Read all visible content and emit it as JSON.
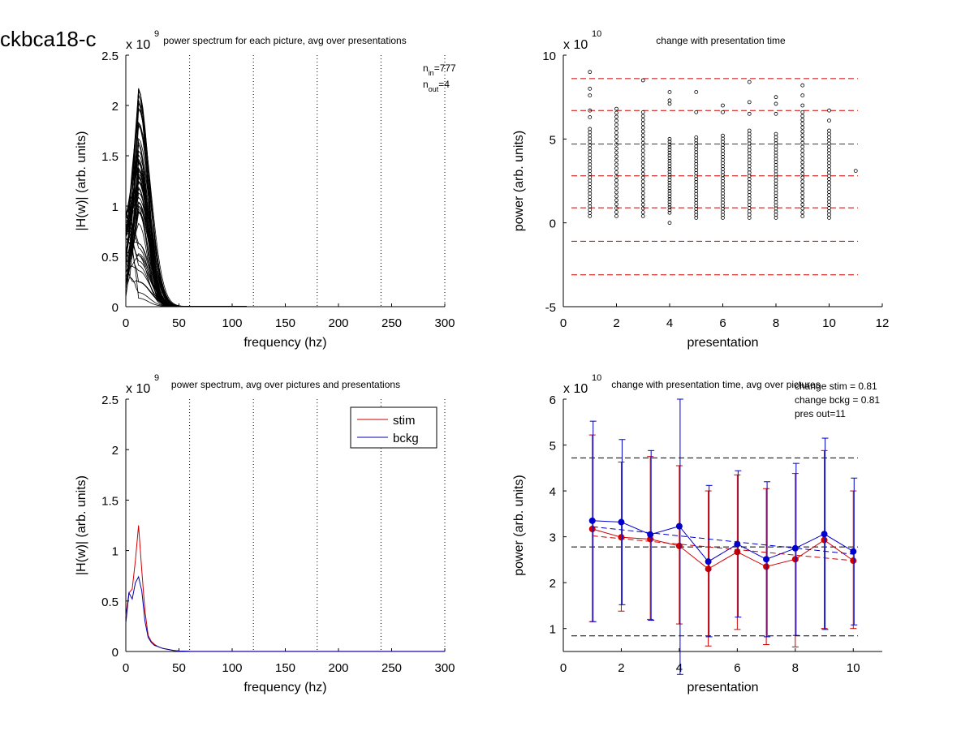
{
  "figure_title": "ckbca18-c",
  "chart_data": [
    {
      "id": "p1",
      "type": "line",
      "title": "power spectrum for each picture, avg over presentations",
      "xlabel": "frequency (hz)",
      "ylabel": "|H(w)| (arb. units)",
      "xlim": [
        0,
        300
      ],
      "ylim": [
        0,
        2.5
      ],
      "y_exponent_prefix": "x 10",
      "y_exponent": "9",
      "xticks": [
        "0",
        "50",
        "100",
        "150",
        "200",
        "250",
        "300"
      ],
      "yticks": [
        "0",
        "0.5",
        "1",
        "1.5",
        "2",
        "2.5"
      ],
      "vlines": [
        60,
        120,
        180,
        240,
        300
      ],
      "annotations": [
        "n_in=777",
        "n_out=4"
      ],
      "n_in_label": "in",
      "n_in_value": "=777",
      "n_out_label": "out",
      "n_out_value": "=4",
      "peak_freq": 12,
      "peak_max": 2.22,
      "line_color": "#000000",
      "grid": false
    },
    {
      "id": "p2",
      "type": "scatter",
      "title": "change with presentation time",
      "xlabel": "presentation",
      "ylabel": "power (arb. units)",
      "xlim": [
        0,
        12
      ],
      "ylim": [
        -5,
        10
      ],
      "y_exponent_prefix": "x 10",
      "y_exponent": "10",
      "xticks": [
        "0",
        "2",
        "4",
        "6",
        "8",
        "10",
        "12"
      ],
      "yticks": [
        "-5",
        "0",
        "5",
        "10"
      ],
      "hlines": [
        8.6,
        6.7,
        4.7,
        2.8,
        0.9,
        -1.1,
        -3.1
      ],
      "hline_color": "#cc0000",
      "columns": [
        {
          "x": 1,
          "min": 0.4,
          "max": 5.6,
          "outliers": [
            9.0,
            8.0,
            7.6,
            6.7,
            6.3
          ]
        },
        {
          "x": 2,
          "min": 0.4,
          "max": 6.8,
          "outliers": []
        },
        {
          "x": 3,
          "min": 0.4,
          "max": 6.6,
          "outliers": [
            8.5
          ]
        },
        {
          "x": 4,
          "min": 0.6,
          "max": 5.0,
          "outliers": [
            7.8,
            7.3,
            7.1,
            0.0
          ]
        },
        {
          "x": 5,
          "min": 0.3,
          "max": 5.1,
          "outliers": [
            7.8,
            6.6
          ]
        },
        {
          "x": 6,
          "min": 0.3,
          "max": 5.2,
          "outliers": [
            7.0,
            6.6
          ]
        },
        {
          "x": 7,
          "min": 0.3,
          "max": 5.5,
          "outliers": [
            8.4,
            7.2,
            6.5
          ]
        },
        {
          "x": 8,
          "min": 0.3,
          "max": 5.3,
          "outliers": [
            7.5,
            7.1,
            6.5
          ]
        },
        {
          "x": 9,
          "min": 0.4,
          "max": 6.6,
          "outliers": [
            8.2,
            7.6,
            7.0
          ]
        },
        {
          "x": 10,
          "min": 0.3,
          "max": 5.5,
          "outliers": [
            6.7,
            6.1
          ]
        },
        {
          "x": 11,
          "min": 3.1,
          "max": 3.1,
          "outliers": []
        }
      ],
      "grid": false
    },
    {
      "id": "p3",
      "type": "line",
      "title": "power spectrum, avg over pictures and presentations",
      "xlabel": "frequency (hz)",
      "ylabel": "|H(w)| (arb. units)",
      "xlim": [
        0,
        300
      ],
      "ylim": [
        0,
        2.5
      ],
      "y_exponent_prefix": "x 10",
      "y_exponent": "9",
      "xticks": [
        "0",
        "50",
        "100",
        "150",
        "200",
        "250",
        "300"
      ],
      "yticks": [
        "0",
        "0.5",
        "1",
        "1.5",
        "2",
        "2.5"
      ],
      "vlines": [
        60,
        120,
        180,
        240,
        300
      ],
      "legend": "top-right",
      "series": [
        {
          "name": "stim",
          "color": "#cc0000",
          "x": [
            0,
            3,
            6,
            9,
            12,
            15,
            18,
            21,
            24,
            27,
            30,
            35,
            40,
            45,
            50,
            60,
            100,
            200,
            300
          ],
          "values": [
            0.35,
            0.58,
            0.62,
            0.9,
            1.25,
            0.8,
            0.4,
            0.16,
            0.1,
            0.07,
            0.05,
            0.03,
            0.02,
            0.01,
            0.005,
            0.002,
            0.001,
            0.001,
            0.001
          ]
        },
        {
          "name": "bckg",
          "color": "#0000aa",
          "x": [
            0,
            3,
            6,
            9,
            12,
            15,
            18,
            21,
            24,
            27,
            30,
            35,
            40,
            45,
            50,
            60,
            100,
            200,
            300
          ],
          "values": [
            0.28,
            0.58,
            0.52,
            0.68,
            0.74,
            0.6,
            0.3,
            0.14,
            0.09,
            0.06,
            0.05,
            0.03,
            0.02,
            0.01,
            0.005,
            0.002,
            0.001,
            0.001,
            0.001
          ]
        }
      ],
      "grid": false
    },
    {
      "id": "p4",
      "type": "line",
      "title": "change with presentation time, avg over pictures",
      "xlabel": "presentation",
      "ylabel": "power (arb. units)",
      "xlim": [
        0,
        11
      ],
      "ylim": [
        0.5,
        6
      ],
      "y_exponent_prefix": "x 10",
      "y_exponent": "10",
      "xticks": [
        "0",
        "2",
        "4",
        "6",
        "8",
        "10"
      ],
      "yticks": [
        "1",
        "2",
        "3",
        "4",
        "5",
        "6"
      ],
      "annotations": [
        "change stim = 0.81",
        "change bckg = 0.81",
        "pres out=11"
      ],
      "hlines": [
        4.72,
        2.78,
        0.84
      ],
      "hline_color": "#000000",
      "x": [
        1,
        2,
        3,
        4,
        5,
        6,
        7,
        8,
        9,
        10
      ],
      "series": [
        {
          "name": "stim",
          "color": "#cc0000",
          "values": [
            3.17,
            2.99,
            2.95,
            2.8,
            2.3,
            2.67,
            2.35,
            2.51,
            2.93,
            2.48
          ],
          "err_low": [
            1.15,
            1.38,
            1.2,
            1.1,
            0.62,
            0.98,
            0.65,
            0.6,
            1.0,
            1.0
          ],
          "err_high": [
            5.22,
            4.63,
            4.75,
            4.55,
            4.0,
            4.35,
            4.05,
            4.38,
            4.88,
            4.0
          ],
          "fit": [
            3.02,
            2.48
          ]
        },
        {
          "name": "bckg",
          "color": "#0000cc",
          "values": [
            3.35,
            3.32,
            3.05,
            3.23,
            2.46,
            2.84,
            2.51,
            2.75,
            3.06,
            2.68
          ],
          "err_low": [
            1.15,
            1.52,
            1.18,
            0.0,
            0.82,
            1.25,
            0.82,
            0.85,
            0.98,
            1.08
          ],
          "err_high": [
            5.52,
            5.12,
            4.88,
            6.0,
            4.12,
            4.44,
            4.2,
            4.6,
            5.15,
            4.28
          ],
          "fit": [
            3.22,
            2.62
          ]
        }
      ],
      "grid": false
    }
  ]
}
